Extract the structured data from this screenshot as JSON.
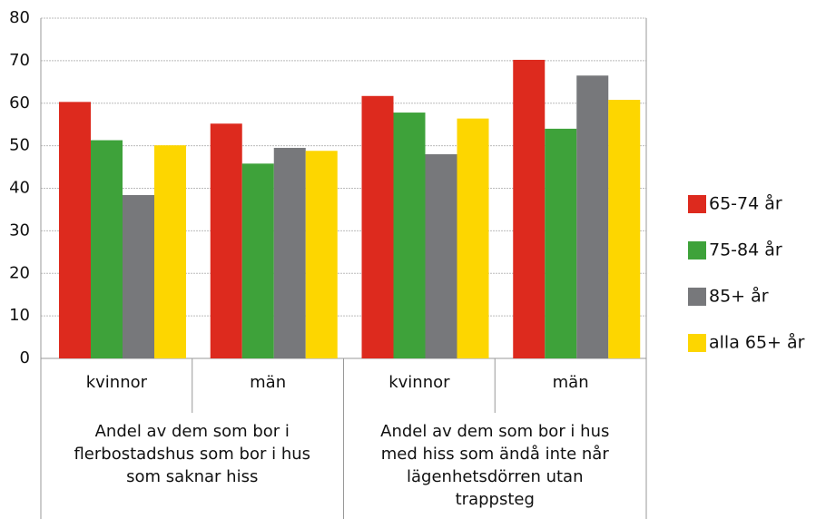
{
  "chart_data": {
    "type": "bar",
    "categories": [
      "kvinnor",
      "män",
      "kvinnor",
      "män"
    ],
    "groups": [
      {
        "lines": [
          "Andel av dem som bor i",
          "flerbostadshus som bor i hus",
          "som saknar hiss"
        ]
      },
      {
        "lines": [
          "Andel av dem som bor i hus",
          "med hiss som ändå inte når",
          "lägenhetsdörren utan",
          "trappsteg"
        ]
      }
    ],
    "series": [
      {
        "name": "65-74 år",
        "color": "#dd2a1e",
        "values": [
          60.3,
          55.2,
          61.7,
          70.2
        ]
      },
      {
        "name": "75-84 år",
        "color": "#3ea23a",
        "values": [
          51.3,
          45.8,
          57.8,
          54.0
        ]
      },
      {
        "name": "85+ år",
        "color": "#77787b",
        "values": [
          38.4,
          49.5,
          48.0,
          66.5
        ]
      },
      {
        "name": "alla 65+ år",
        "color": "#fdd600",
        "values": [
          50.1,
          48.8,
          56.4,
          60.8
        ]
      }
    ],
    "ylim": [
      0,
      80
    ],
    "yticks": [
      0,
      10,
      20,
      30,
      40,
      50,
      60,
      70,
      80
    ],
    "grid": true,
    "legend": "right"
  }
}
